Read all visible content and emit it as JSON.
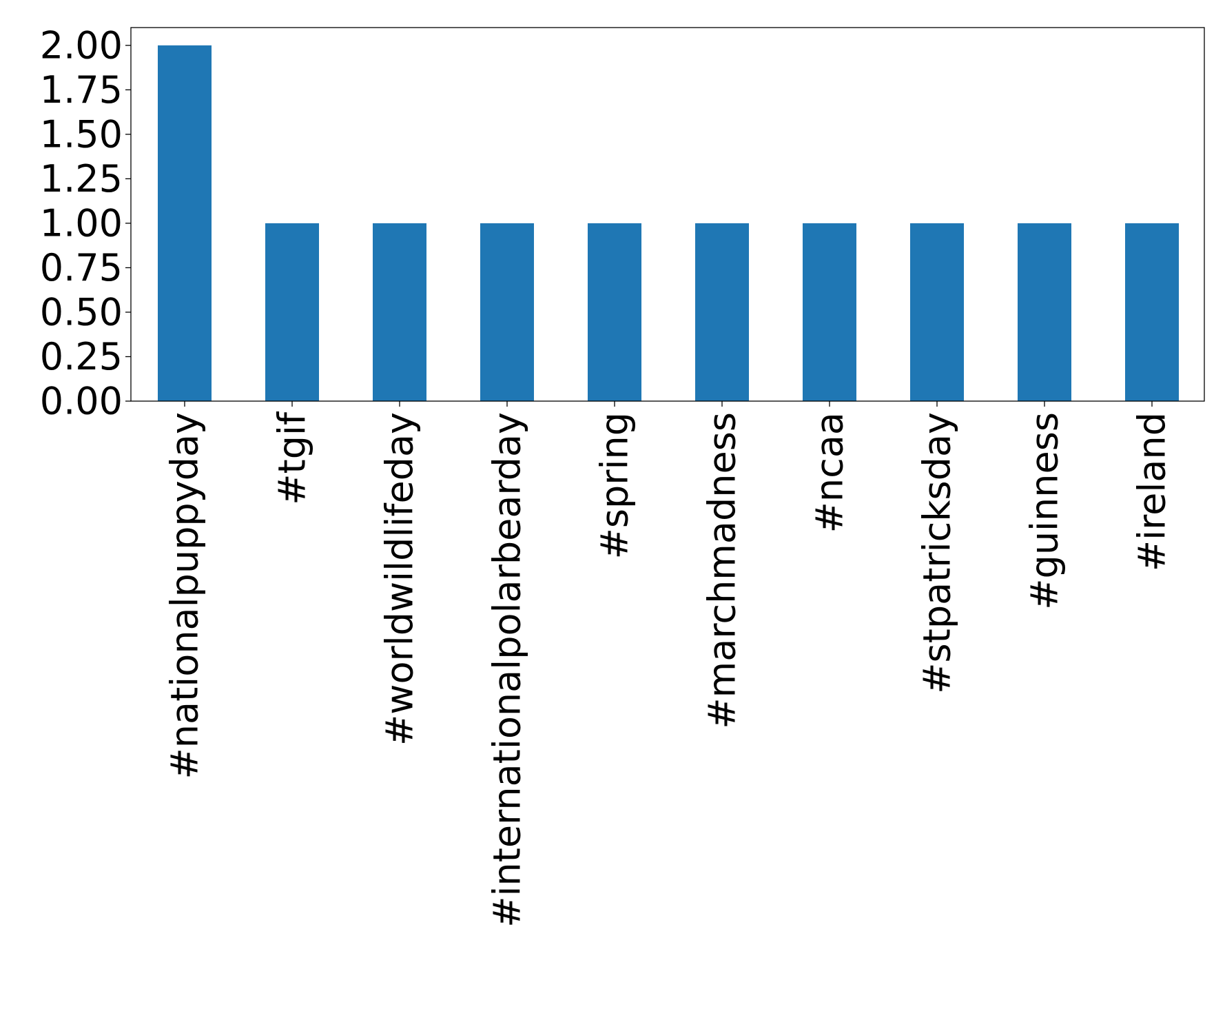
{
  "chart_data": {
    "type": "bar",
    "categories": [
      "#nationalpuppyday",
      "#tgif",
      "#worldwildlifeday",
      "#internationalpolarbearday",
      "#spring",
      "#marchmadness",
      "#ncaa",
      "#stpatricksday",
      "#guinness",
      "#ireland"
    ],
    "values": [
      2,
      1,
      1,
      1,
      1,
      1,
      1,
      1,
      1,
      1
    ],
    "ylim": [
      0,
      2.1
    ],
    "yticks": [
      0,
      0.25,
      0.5,
      0.75,
      1.0,
      1.25,
      1.5,
      1.75,
      2.0
    ],
    "ytick_labels": [
      "0.00",
      "0.25",
      "0.50",
      "0.75",
      "1.00",
      "1.25",
      "1.50",
      "1.75",
      "2.00"
    ],
    "title": "",
    "xlabel": "",
    "ylabel": "",
    "grid": false,
    "legend": "none",
    "bar_color": "#1f77b4",
    "axis_color": "#000000"
  }
}
